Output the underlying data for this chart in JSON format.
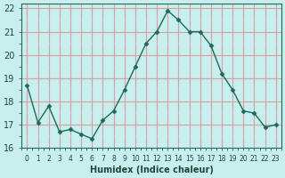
{
  "x": [
    0,
    1,
    2,
    3,
    4,
    5,
    6,
    7,
    8,
    9,
    10,
    11,
    12,
    13,
    14,
    15,
    16,
    17,
    18,
    19,
    20,
    21,
    22,
    23
  ],
  "y": [
    18.7,
    17.1,
    17.8,
    16.7,
    16.8,
    16.6,
    16.4,
    17.2,
    17.6,
    18.5,
    19.5,
    20.5,
    21.0,
    21.9,
    21.5,
    21.0,
    21.0,
    20.4,
    19.2,
    18.5,
    17.6,
    17.5,
    16.9,
    17.0
  ],
  "bg_color": "#c8eeee",
  "grid_color_major": "#d8a0a0",
  "grid_color_minor": "#c8eeee",
  "line_color": "#1a6b5a",
  "marker_color": "#1a6b5a",
  "xlabel": "Humidex (Indice chaleur)",
  "ylabel": "",
  "ylim": [
    16,
    22.2
  ],
  "xlim": [
    -0.5,
    23.5
  ],
  "yticks": [
    16,
    17,
    18,
    19,
    20,
    21,
    22
  ],
  "xtick_labels": [
    "0",
    "1",
    "2",
    "3",
    "4",
    "5",
    "6",
    "7",
    "8",
    "9",
    "10",
    "11",
    "12",
    "13",
    "14",
    "15",
    "16",
    "17",
    "18",
    "19",
    "20",
    "21",
    "22",
    "23"
  ],
  "title": "",
  "figsize": [
    3.2,
    2.0
  ],
  "dpi": 100
}
